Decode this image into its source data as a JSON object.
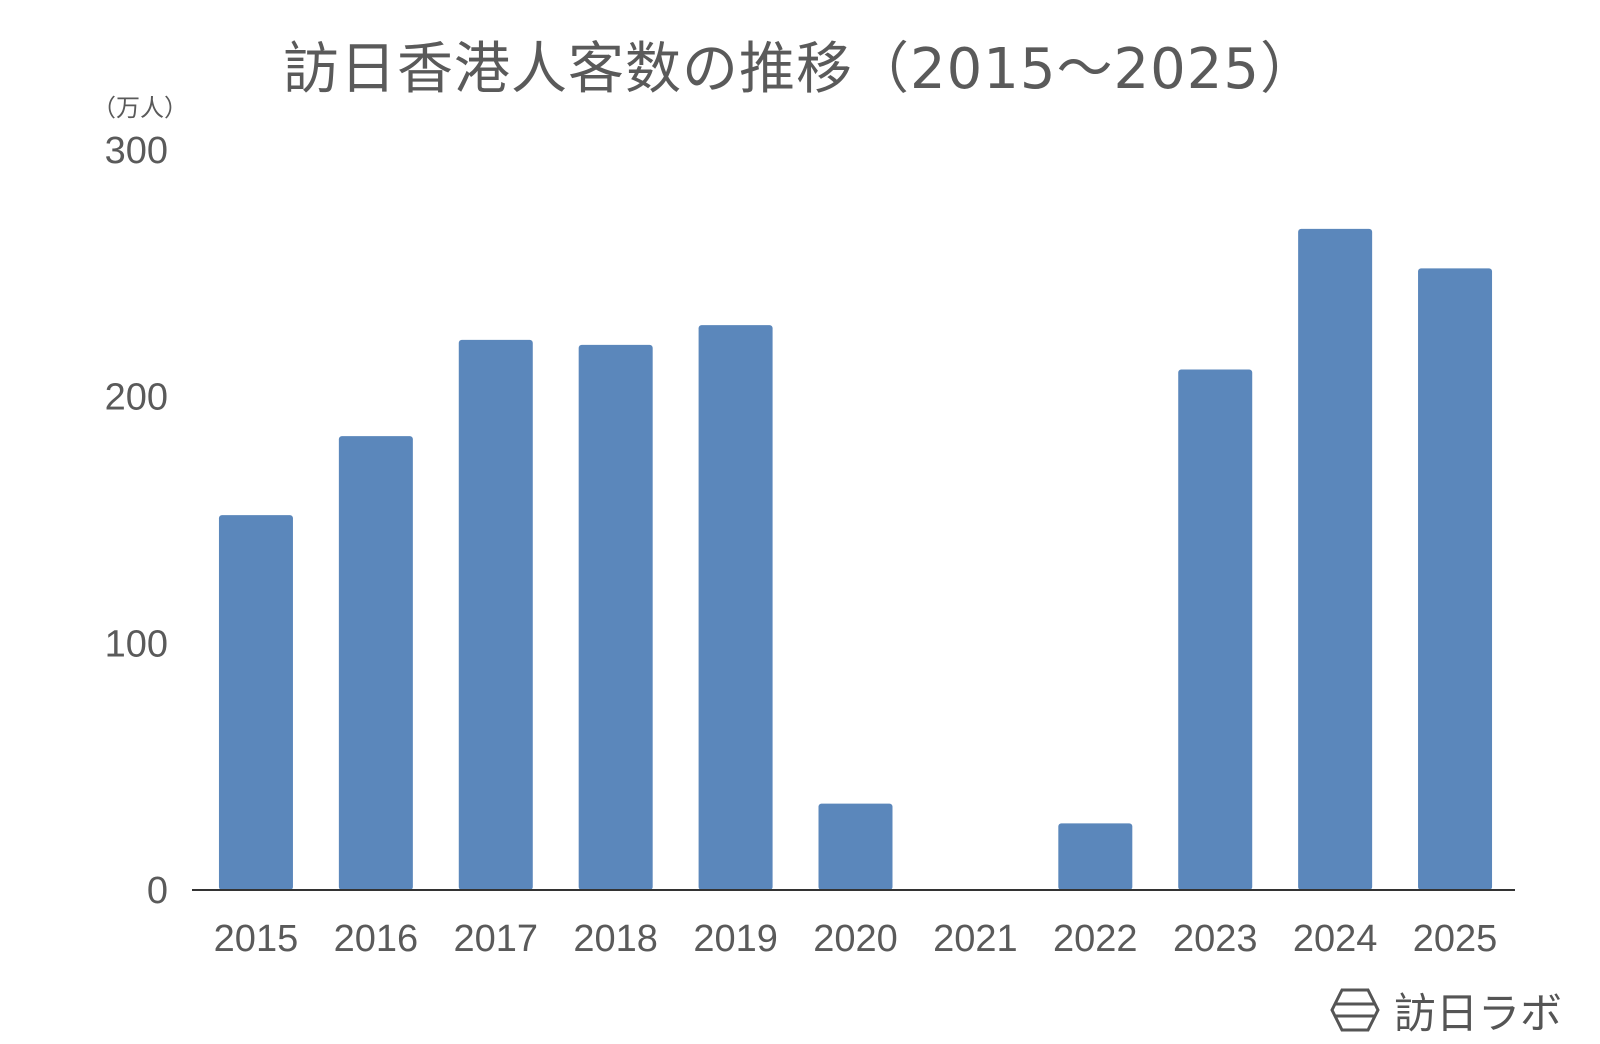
{
  "chart_data": {
    "type": "bar",
    "title": "訪日香港人客数の推移（2015～2025）",
    "unit": "（万人）",
    "categories": [
      "2015",
      "2016",
      "2017",
      "2018",
      "2019",
      "2020",
      "2021",
      "2022",
      "2023",
      "2024",
      "2025"
    ],
    "series": [
      {
        "values": [
          152,
          184,
          223,
          221,
          229,
          35,
          0.01,
          27,
          211,
          268,
          252
        ]
      }
    ],
    "ylim": [
      0,
      300
    ],
    "yticks": [
      "0",
      "100",
      "200",
      "300"
    ],
    "grid": false,
    "bar_color": "#5b87bb",
    "axis_color": "#333333",
    "label_color": "#5a5a5a"
  },
  "brand": {
    "name": "訪日ラボ",
    "icon": "hexagon-logo-icon"
  }
}
